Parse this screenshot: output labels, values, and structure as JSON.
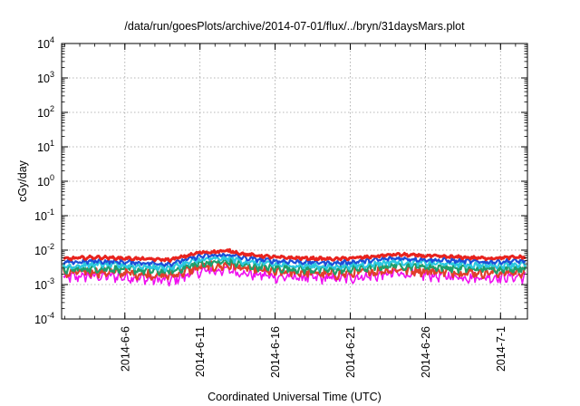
{
  "chart_data": {
    "type": "line",
    "title": "/data/run/goesPlots/archive/2014-07-01/flux/../bryn/31daysMars.plot",
    "xlabel": "Coordinated Universal Time (UTC)",
    "ylabel": "cGy/day",
    "yscale": "log",
    "ylim": [
      0.0001,
      10000
    ],
    "y_ticks": [
      {
        "value": 0.0001,
        "base": "10",
        "exp": "-4"
      },
      {
        "value": 0.001,
        "base": "10",
        "exp": "-3"
      },
      {
        "value": 0.01,
        "base": "10",
        "exp": "-2"
      },
      {
        "value": 0.1,
        "base": "10",
        "exp": "-1"
      },
      {
        "value": 1,
        "base": "10",
        "exp": "0"
      },
      {
        "value": 10,
        "base": "10",
        "exp": "1"
      },
      {
        "value": 100,
        "base": "10",
        "exp": "2"
      },
      {
        "value": 1000,
        "base": "10",
        "exp": "3"
      },
      {
        "value": 10000,
        "base": "10",
        "exp": "4"
      }
    ],
    "xlim": [
      "2014-06-01T19:00",
      "2014-07-02T19:00"
    ],
    "x_ticks": [
      {
        "value": "2014-06-06",
        "label": "2014-6-6"
      },
      {
        "value": "2014-06-11",
        "label": "2014-6-11"
      },
      {
        "value": "2014-06-16",
        "label": "2014-6-16"
      },
      {
        "value": "2014-06-21",
        "label": "2014-6-21"
      },
      {
        "value": "2014-06-26",
        "label": "2014-6-26"
      },
      {
        "value": "2014-07-01",
        "label": "2014-7-1"
      }
    ],
    "grid": true,
    "legend": "none",
    "series": [
      {
        "color": "#e8231e",
        "x": [
          "2014-06-02",
          "2014-06-04",
          "2014-06-06",
          "2014-06-08",
          "2014-06-09",
          "2014-06-11",
          "2014-06-13",
          "2014-06-14",
          "2014-06-16",
          "2014-06-18",
          "2014-06-20",
          "2014-06-22",
          "2014-06-24",
          "2014-06-26",
          "2014-06-28",
          "2014-06-30",
          "2014-07-02"
        ],
        "y": [
          0.0056,
          0.0062,
          0.0058,
          0.0054,
          0.0052,
          0.0085,
          0.0095,
          0.0075,
          0.0062,
          0.0058,
          0.0055,
          0.0062,
          0.0075,
          0.0068,
          0.0063,
          0.0058,
          0.0062
        ]
      },
      {
        "color": "#1a4fd8",
        "x": [
          "2014-06-02",
          "2014-06-04",
          "2014-06-06",
          "2014-06-08",
          "2014-06-09",
          "2014-06-11",
          "2014-06-13",
          "2014-06-14",
          "2014-06-16",
          "2014-06-18",
          "2014-06-20",
          "2014-06-22",
          "2014-06-24",
          "2014-06-26",
          "2014-06-28",
          "2014-06-30",
          "2014-07-02"
        ],
        "y": [
          0.0043,
          0.0048,
          0.0045,
          0.0041,
          0.004,
          0.0066,
          0.0073,
          0.0058,
          0.0048,
          0.0045,
          0.0042,
          0.0048,
          0.0058,
          0.0053,
          0.0049,
          0.0045,
          0.0048
        ]
      },
      {
        "color": "#2cc8e0",
        "x": [
          "2014-06-02",
          "2014-06-04",
          "2014-06-06",
          "2014-06-08",
          "2014-06-09",
          "2014-06-11",
          "2014-06-13",
          "2014-06-14",
          "2014-06-16",
          "2014-06-18",
          "2014-06-20",
          "2014-06-22",
          "2014-06-24",
          "2014-06-26",
          "2014-06-28",
          "2014-06-30",
          "2014-07-02"
        ],
        "y": [
          0.0034,
          0.0038,
          0.0036,
          0.0032,
          0.0031,
          0.0052,
          0.0058,
          0.0046,
          0.0038,
          0.0035,
          0.0033,
          0.0038,
          0.0046,
          0.0042,
          0.0039,
          0.0036,
          0.0038
        ]
      },
      {
        "color": "#1e9e6a",
        "x": [
          "2014-06-02",
          "2014-06-04",
          "2014-06-06",
          "2014-06-08",
          "2014-06-09",
          "2014-06-11",
          "2014-06-13",
          "2014-06-14",
          "2014-06-16",
          "2014-06-18",
          "2014-06-20",
          "2014-06-22",
          "2014-06-24",
          "2014-06-26",
          "2014-06-28",
          "2014-06-30",
          "2014-07-02"
        ],
        "y": [
          0.0027,
          0.003,
          0.0028,
          0.0025,
          0.0024,
          0.0041,
          0.0046,
          0.0036,
          0.003,
          0.0028,
          0.0026,
          0.003,
          0.0036,
          0.0033,
          0.003,
          0.0028,
          0.003
        ]
      },
      {
        "color": "#e0402a",
        "x": [
          "2014-06-02",
          "2014-06-04",
          "2014-06-06",
          "2014-06-08",
          "2014-06-09",
          "2014-06-11",
          "2014-06-13",
          "2014-06-14",
          "2014-06-16",
          "2014-06-18",
          "2014-06-20",
          "2014-06-22",
          "2014-06-24",
          "2014-06-26",
          "2014-06-28",
          "2014-06-30",
          "2014-07-02"
        ],
        "y": [
          0.0021,
          0.0024,
          0.0022,
          0.0019,
          0.0018,
          0.0032,
          0.0036,
          0.0028,
          0.0023,
          0.0022,
          0.002,
          0.0023,
          0.0028,
          0.0025,
          0.0023,
          0.0022,
          0.0023
        ]
      },
      {
        "color": "#f010f0",
        "x": [
          "2014-06-02",
          "2014-06-04",
          "2014-06-06",
          "2014-06-08",
          "2014-06-09",
          "2014-06-11",
          "2014-06-13",
          "2014-06-14",
          "2014-06-16",
          "2014-06-18",
          "2014-06-20",
          "2014-06-22",
          "2014-06-24",
          "2014-06-26",
          "2014-06-28",
          "2014-06-30",
          "2014-07-02"
        ],
        "y": [
          0.0016,
          0.0018,
          0.0017,
          0.0014,
          0.0013,
          0.0024,
          0.0027,
          0.0021,
          0.0017,
          0.0016,
          0.0015,
          0.0017,
          0.0021,
          0.0019,
          0.0017,
          0.0016,
          0.0017
        ]
      }
    ]
  }
}
